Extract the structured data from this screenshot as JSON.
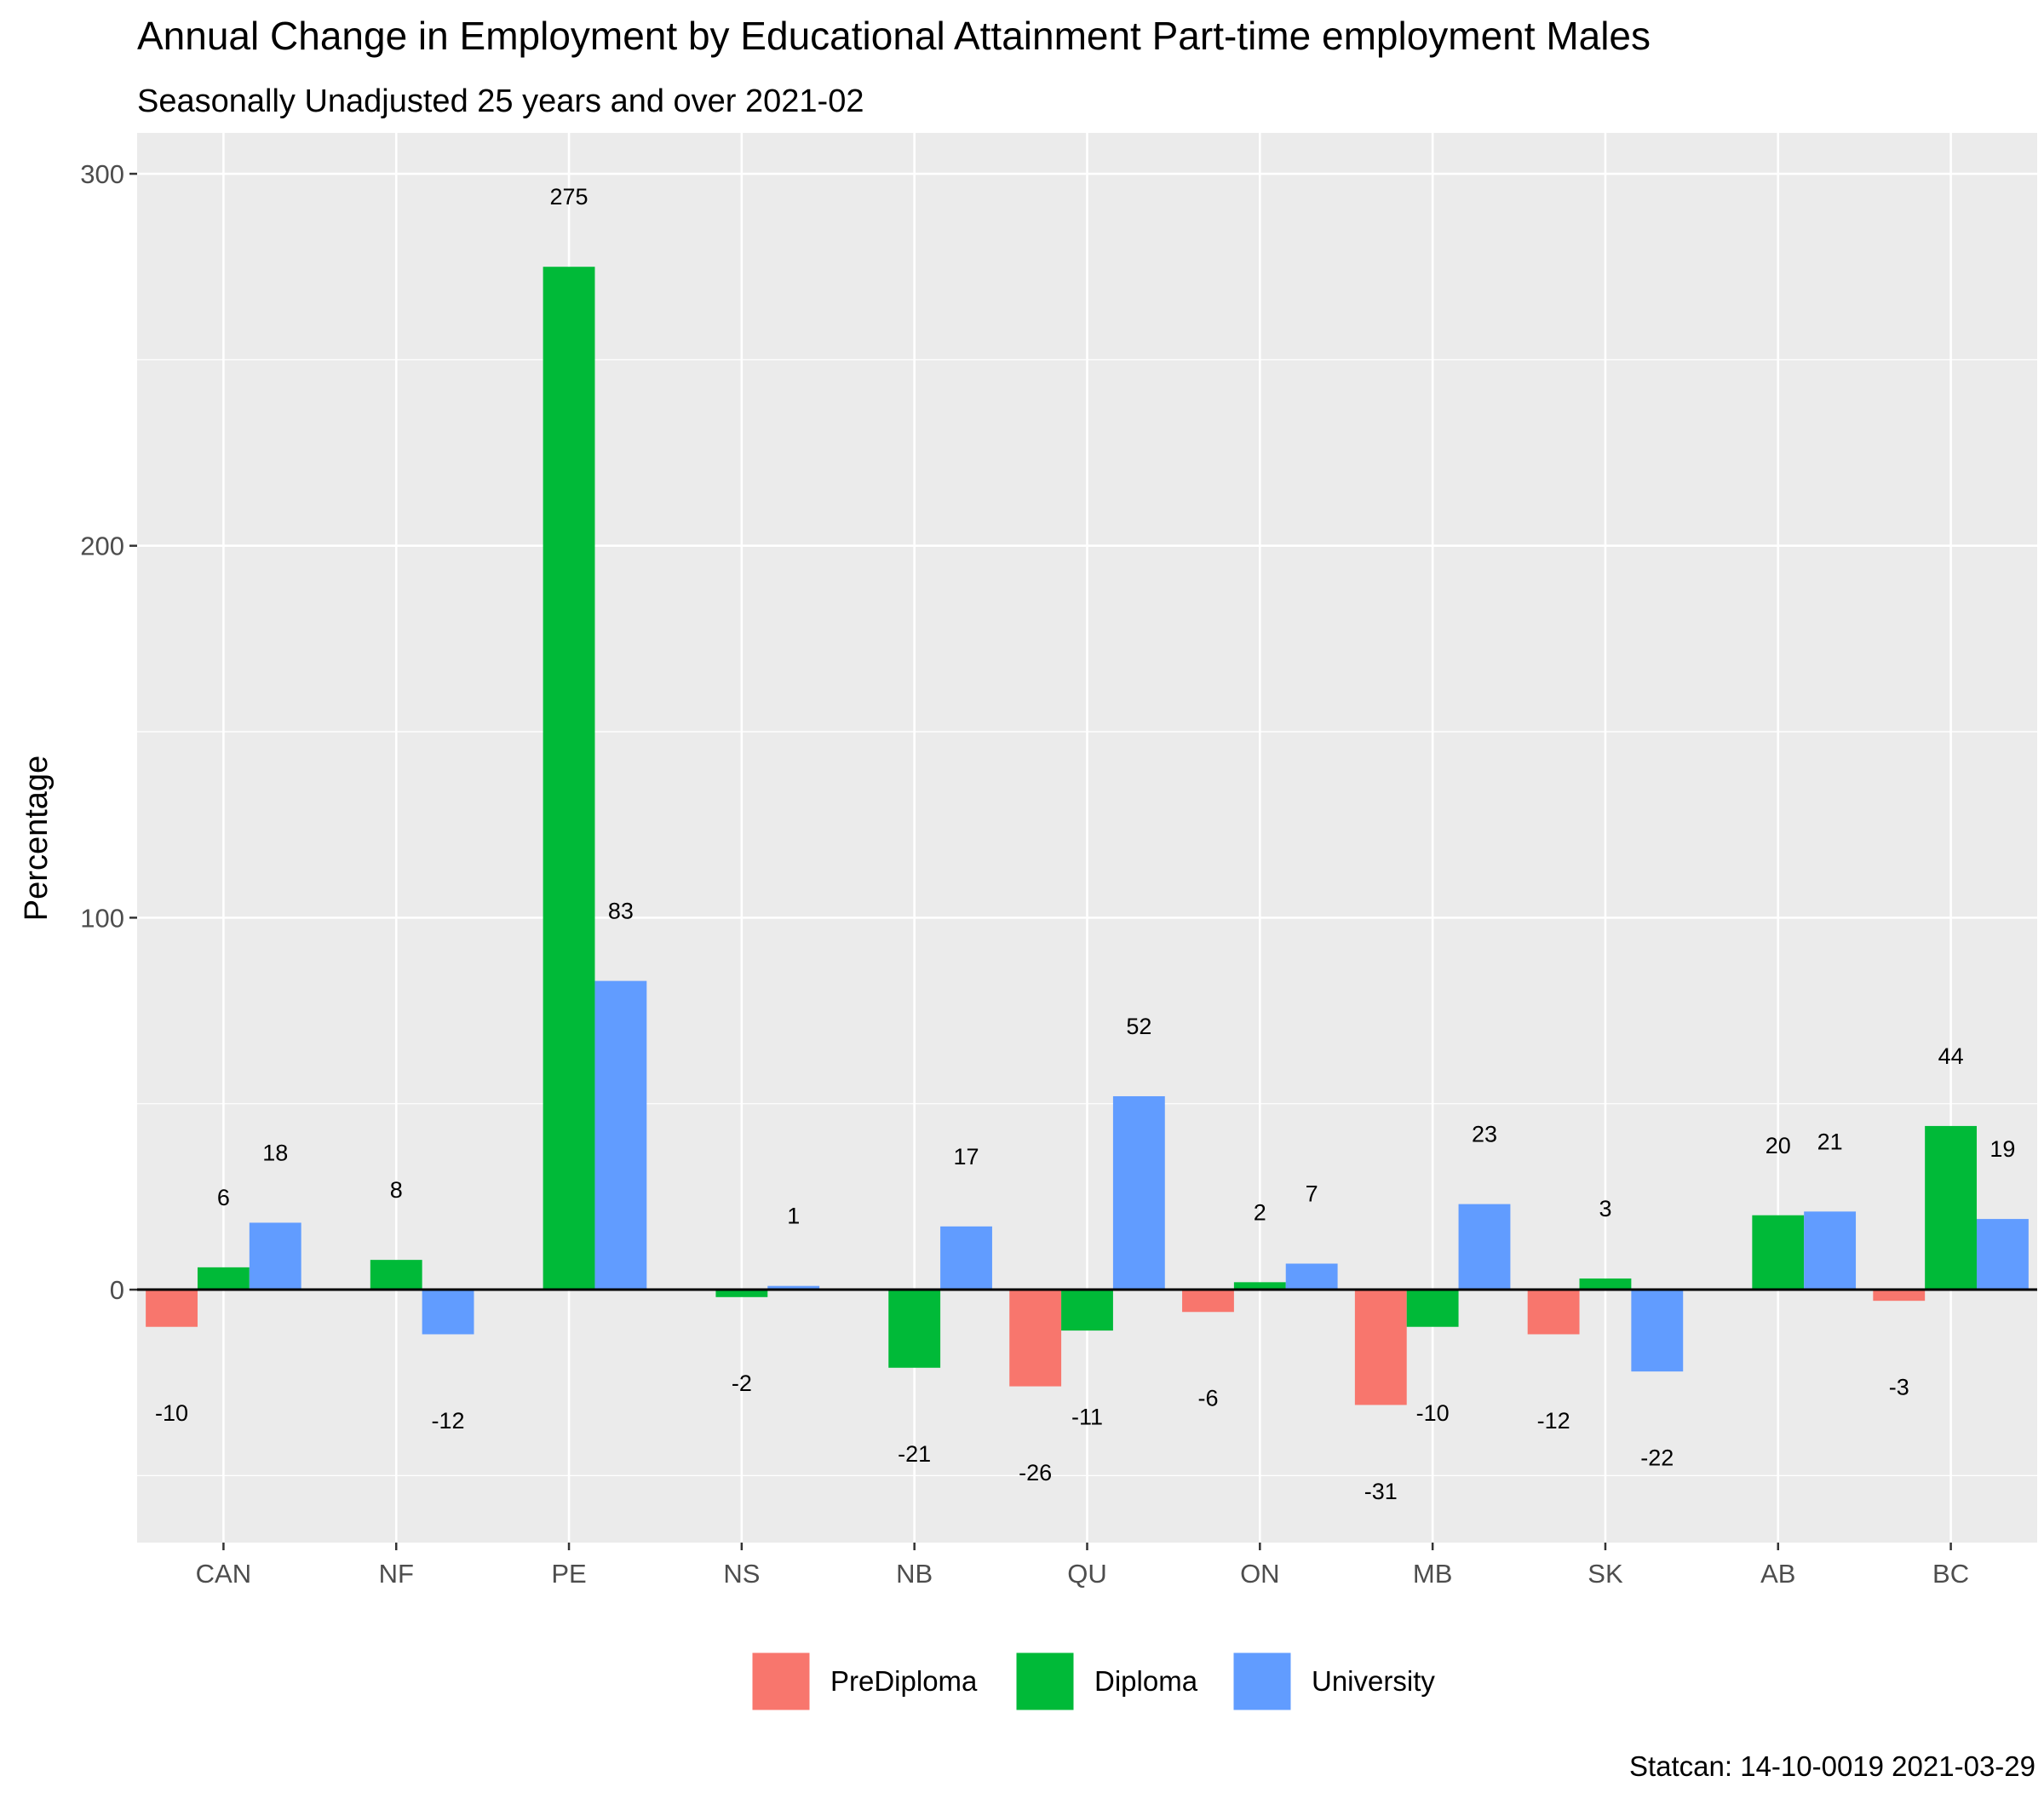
{
  "chart_data": {
    "type": "bar",
    "title": "Annual Change in Employment by Educational Attainment Part-time employment Males",
    "subtitle": "Seasonally Unadjusted 25 years and over 2021-02",
    "ylabel": "Percentage",
    "xlabel": "",
    "caption": "Statcan: 14-10-0019 2021-03-29",
    "ylim": [
      -68,
      311
    ],
    "yticks": [
      0,
      100,
      200,
      300
    ],
    "grid": true,
    "legend_position": "bottom",
    "categories": [
      "CAN",
      "NF",
      "PE",
      "NS",
      "NB",
      "QU",
      "ON",
      "MB",
      "SK",
      "AB",
      "BC"
    ],
    "series": [
      {
        "name": "PreDiploma",
        "color": "#F8766D",
        "values": [
          -10,
          null,
          null,
          null,
          null,
          -26,
          -6,
          -31,
          -12,
          null,
          -3
        ]
      },
      {
        "name": "Diploma",
        "color": "#00BA38",
        "values": [
          6,
          8,
          275,
          -2,
          -21,
          -11,
          2,
          -10,
          3,
          20,
          44
        ]
      },
      {
        "name": "University",
        "color": "#619CFF",
        "values": [
          18,
          -12,
          83,
          1,
          17,
          52,
          7,
          23,
          -22,
          21,
          19
        ]
      }
    ]
  }
}
